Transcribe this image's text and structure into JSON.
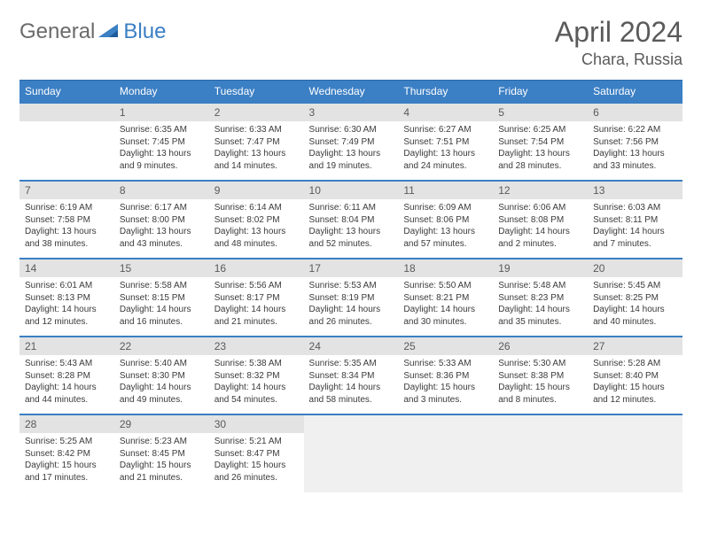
{
  "logo": {
    "text1": "General",
    "text2": "Blue"
  },
  "title": "April 2024",
  "location": "Chara, Russia",
  "colors": {
    "header_bg": "#3b7fc4",
    "header_text": "#ffffff",
    "daynum_bg": "#e3e3e3",
    "daynum_text": "#5a5a5a",
    "body_text": "#3a3a3a",
    "title_text": "#5a5a5a",
    "row_border": "#3b7fc4",
    "tail_bg": "#f0f0f0"
  },
  "weekdays": [
    "Sunday",
    "Monday",
    "Tuesday",
    "Wednesday",
    "Thursday",
    "Friday",
    "Saturday"
  ],
  "weeks": [
    [
      null,
      {
        "n": "1",
        "sunrise": "6:35 AM",
        "sunset": "7:45 PM",
        "daylight": "13 hours and 9 minutes."
      },
      {
        "n": "2",
        "sunrise": "6:33 AM",
        "sunset": "7:47 PM",
        "daylight": "13 hours and 14 minutes."
      },
      {
        "n": "3",
        "sunrise": "6:30 AM",
        "sunset": "7:49 PM",
        "daylight": "13 hours and 19 minutes."
      },
      {
        "n": "4",
        "sunrise": "6:27 AM",
        "sunset": "7:51 PM",
        "daylight": "13 hours and 24 minutes."
      },
      {
        "n": "5",
        "sunrise": "6:25 AM",
        "sunset": "7:54 PM",
        "daylight": "13 hours and 28 minutes."
      },
      {
        "n": "6",
        "sunrise": "6:22 AM",
        "sunset": "7:56 PM",
        "daylight": "13 hours and 33 minutes."
      }
    ],
    [
      {
        "n": "7",
        "sunrise": "6:19 AM",
        "sunset": "7:58 PM",
        "daylight": "13 hours and 38 minutes."
      },
      {
        "n": "8",
        "sunrise": "6:17 AM",
        "sunset": "8:00 PM",
        "daylight": "13 hours and 43 minutes."
      },
      {
        "n": "9",
        "sunrise": "6:14 AM",
        "sunset": "8:02 PM",
        "daylight": "13 hours and 48 minutes."
      },
      {
        "n": "10",
        "sunrise": "6:11 AM",
        "sunset": "8:04 PM",
        "daylight": "13 hours and 52 minutes."
      },
      {
        "n": "11",
        "sunrise": "6:09 AM",
        "sunset": "8:06 PM",
        "daylight": "13 hours and 57 minutes."
      },
      {
        "n": "12",
        "sunrise": "6:06 AM",
        "sunset": "8:08 PM",
        "daylight": "14 hours and 2 minutes."
      },
      {
        "n": "13",
        "sunrise": "6:03 AM",
        "sunset": "8:11 PM",
        "daylight": "14 hours and 7 minutes."
      }
    ],
    [
      {
        "n": "14",
        "sunrise": "6:01 AM",
        "sunset": "8:13 PM",
        "daylight": "14 hours and 12 minutes."
      },
      {
        "n": "15",
        "sunrise": "5:58 AM",
        "sunset": "8:15 PM",
        "daylight": "14 hours and 16 minutes."
      },
      {
        "n": "16",
        "sunrise": "5:56 AM",
        "sunset": "8:17 PM",
        "daylight": "14 hours and 21 minutes."
      },
      {
        "n": "17",
        "sunrise": "5:53 AM",
        "sunset": "8:19 PM",
        "daylight": "14 hours and 26 minutes."
      },
      {
        "n": "18",
        "sunrise": "5:50 AM",
        "sunset": "8:21 PM",
        "daylight": "14 hours and 30 minutes."
      },
      {
        "n": "19",
        "sunrise": "5:48 AM",
        "sunset": "8:23 PM",
        "daylight": "14 hours and 35 minutes."
      },
      {
        "n": "20",
        "sunrise": "5:45 AM",
        "sunset": "8:25 PM",
        "daylight": "14 hours and 40 minutes."
      }
    ],
    [
      {
        "n": "21",
        "sunrise": "5:43 AM",
        "sunset": "8:28 PM",
        "daylight": "14 hours and 44 minutes."
      },
      {
        "n": "22",
        "sunrise": "5:40 AM",
        "sunset": "8:30 PM",
        "daylight": "14 hours and 49 minutes."
      },
      {
        "n": "23",
        "sunrise": "5:38 AM",
        "sunset": "8:32 PM",
        "daylight": "14 hours and 54 minutes."
      },
      {
        "n": "24",
        "sunrise": "5:35 AM",
        "sunset": "8:34 PM",
        "daylight": "14 hours and 58 minutes."
      },
      {
        "n": "25",
        "sunrise": "5:33 AM",
        "sunset": "8:36 PM",
        "daylight": "15 hours and 3 minutes."
      },
      {
        "n": "26",
        "sunrise": "5:30 AM",
        "sunset": "8:38 PM",
        "daylight": "15 hours and 8 minutes."
      },
      {
        "n": "27",
        "sunrise": "5:28 AM",
        "sunset": "8:40 PM",
        "daylight": "15 hours and 12 minutes."
      }
    ],
    [
      {
        "n": "28",
        "sunrise": "5:25 AM",
        "sunset": "8:42 PM",
        "daylight": "15 hours and 17 minutes."
      },
      {
        "n": "29",
        "sunrise": "5:23 AM",
        "sunset": "8:45 PM",
        "daylight": "15 hours and 21 minutes."
      },
      {
        "n": "30",
        "sunrise": "5:21 AM",
        "sunset": "8:47 PM",
        "daylight": "15 hours and 26 minutes."
      },
      {
        "tail": true
      },
      {
        "tail": true
      },
      {
        "tail": true
      },
      {
        "tail": true
      }
    ]
  ],
  "labels": {
    "sunrise": "Sunrise:",
    "sunset": "Sunset:",
    "daylight": "Daylight:"
  }
}
